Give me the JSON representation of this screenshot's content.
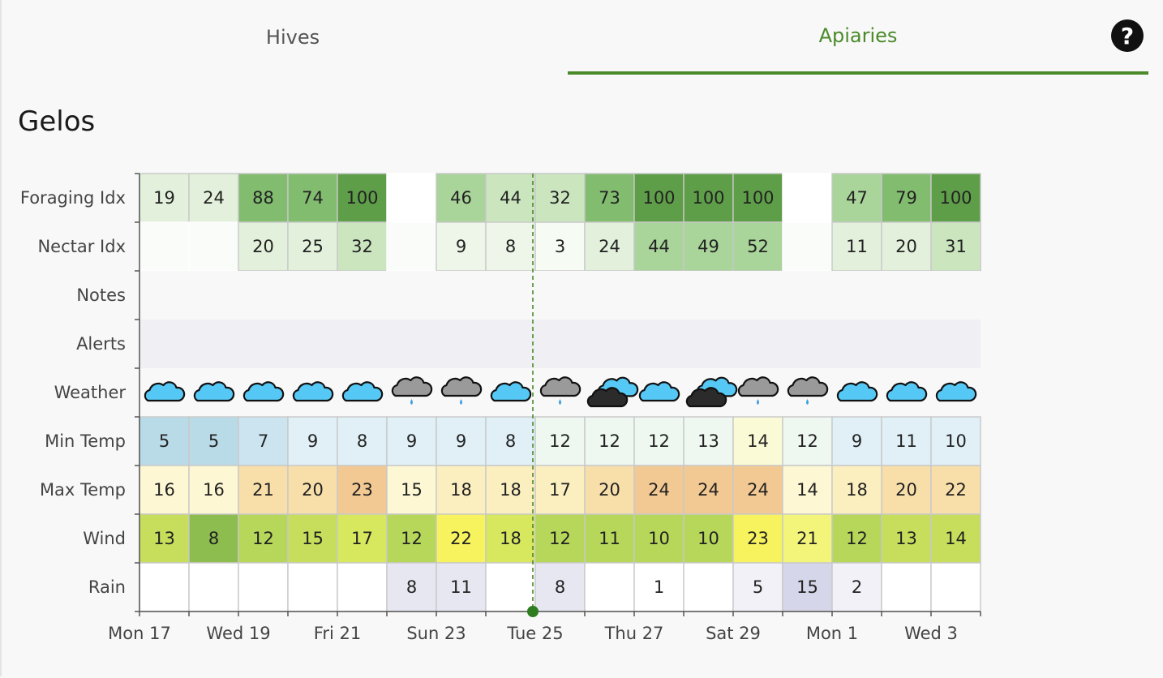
{
  "tabs": {
    "hives": "Hives",
    "apiaries": "Apiaries"
  },
  "help_label": "?",
  "page_title": "Gelos",
  "today_index": 8,
  "colors": {
    "accent": "#4a8a2a",
    "foraging": [
      "#f6fbf4",
      "#e3f1dc",
      "#cbe6bf",
      "#a9d49a",
      "#82bc6f",
      "#5e9e48"
    ],
    "min_temp": [
      "#b9dbe8",
      "#cbe4ef",
      "#e0f0f6",
      "#eef7f0",
      "#fbfad6"
    ],
    "max_temp": [
      "#fdf8d3",
      "#fbefc0",
      "#f8dfaa",
      "#f3c993"
    ],
    "wind": [
      "#8ebd4f",
      "#b7d75a",
      "#c6de5b",
      "#d7e85f",
      "#f2f57a",
      "#f7f35f"
    ],
    "rain": [
      "#ffffff",
      "#f1f1f7",
      "#e7e7f2",
      "#d6d6ea"
    ]
  },
  "chart_data": {
    "type": "table",
    "row_labels": [
      "Foraging Idx",
      "Nectar Idx",
      "Notes",
      "Alerts",
      "Weather",
      "Min Temp",
      "Max Temp",
      "Wind",
      "Rain"
    ],
    "x_tick_labels": [
      "Mon 17",
      "Wed 19",
      "Fri 21",
      "Sun 23",
      "Tue 25",
      "Thu 27",
      "Sat 29",
      "Mon 1",
      "Wed 3"
    ],
    "foraging_idx": [
      19,
      24,
      88,
      74,
      100,
      null,
      46,
      44,
      32,
      73,
      100,
      100,
      100,
      null,
      47,
      79,
      100
    ],
    "nectar_idx": [
      null,
      null,
      20,
      25,
      32,
      null,
      9,
      8,
      3,
      24,
      44,
      49,
      52,
      null,
      11,
      20,
      31
    ],
    "weather": [
      "cloud-icon",
      "cloud-icon",
      "cloud-icon",
      "cloud-icon",
      "cloud-icon",
      "rain-cloud-icon",
      "rain-cloud-icon",
      "cloud-icon",
      "rain-cloud-icon",
      "storm-cloud-icon",
      "cloud-icon",
      "storm-cloud-icon",
      "rain-cloud-icon",
      "rain-cloud-icon",
      "cloud-icon",
      "cloud-icon",
      "cloud-icon"
    ],
    "min_temp": [
      5,
      5,
      7,
      9,
      8,
      9,
      9,
      8,
      12,
      12,
      12,
      13,
      14,
      12,
      9,
      11,
      10
    ],
    "max_temp": [
      16,
      16,
      21,
      20,
      23,
      15,
      18,
      18,
      17,
      20,
      24,
      24,
      24,
      14,
      18,
      20,
      22
    ],
    "wind": [
      13,
      8,
      12,
      15,
      17,
      12,
      22,
      18,
      12,
      11,
      10,
      10,
      23,
      21,
      12,
      13,
      14
    ],
    "rain": [
      null,
      null,
      null,
      null,
      null,
      8,
      11,
      null,
      8,
      null,
      1,
      null,
      5,
      15,
      2,
      null,
      null
    ]
  }
}
